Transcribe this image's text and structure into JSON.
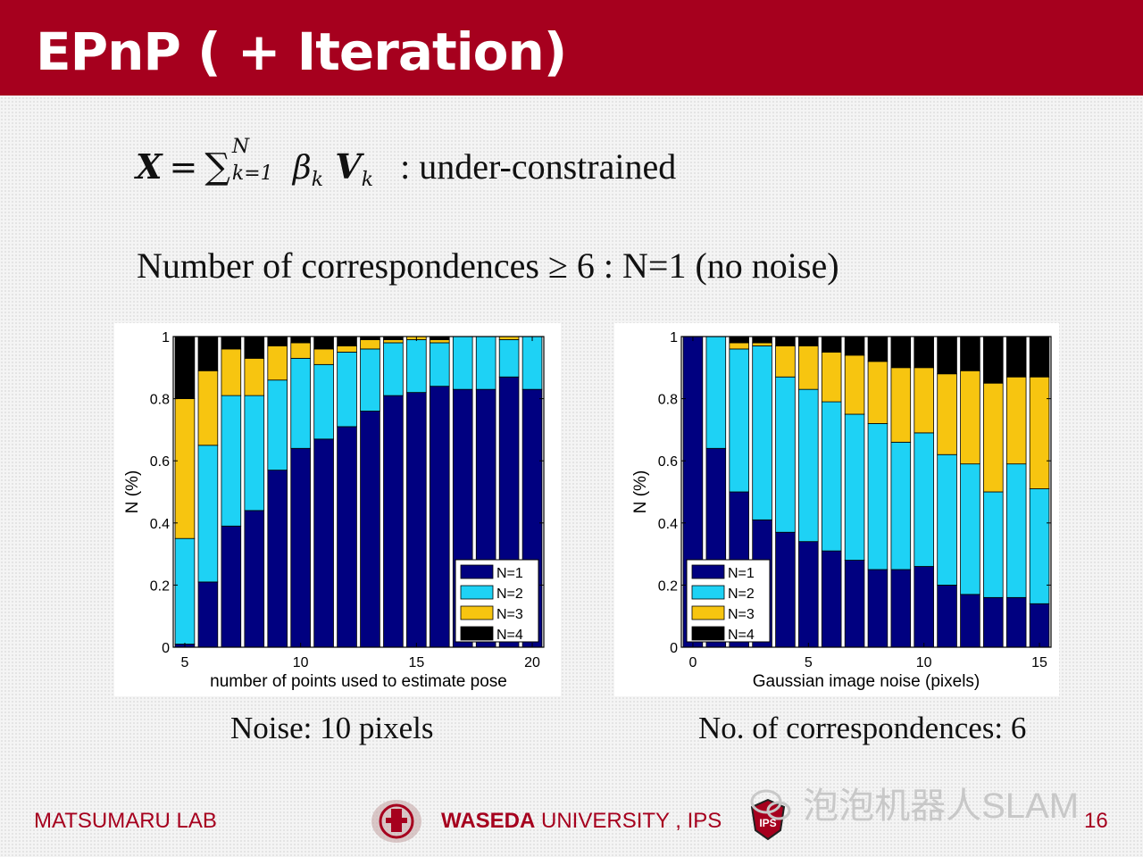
{
  "slide": {
    "title": "EPnP ( + Iteration)",
    "formula": {
      "lhs": "X",
      "equals": "=",
      "sum_symbol": "∑",
      "sum_upper": "N",
      "sum_lower": "k=1",
      "beta": "β",
      "sub_k": "k",
      "vec": "V",
      "note": ": under-constrained"
    },
    "line2": "Number of correspondences ≥ 6 : N=1 (no noise)",
    "caption_left": "Noise: 10 pixels",
    "caption_right": "No. of correspondences: 6",
    "footer_left": "MATSUMARU LAB",
    "footer_center_bold": "WASEDA",
    "footer_center_rest": " UNIVERSITY , IPS",
    "page_number": "16",
    "watermark": "泡泡机器人SLAM",
    "badge_text": "IPS"
  },
  "colors": {
    "header": "#a6001e",
    "N1": "#000080",
    "N2": "#1ed2f5",
    "N3": "#f7c510",
    "N4": "#000000"
  },
  "chart_data": [
    {
      "type": "bar",
      "stacked": true,
      "xlabel": "number of points used to estimate pose",
      "ylabel": "N (%)",
      "x": [
        5,
        6,
        7,
        8,
        9,
        10,
        11,
        12,
        13,
        14,
        15,
        16,
        17,
        18,
        19,
        20
      ],
      "xticks": [
        5,
        10,
        15,
        20
      ],
      "xticklabels": [
        "5",
        "10",
        "15",
        "20"
      ],
      "ylim": [
        0,
        1
      ],
      "yticks": [
        0,
        0.2,
        0.4,
        0.6,
        0.8,
        1
      ],
      "yticklabels": [
        "0",
        "0.2",
        "0.4",
        "0.6",
        "0.8",
        "1"
      ],
      "legend_position": "bottom-right",
      "series": [
        {
          "name": "N=1",
          "values": [
            0.01,
            0.21,
            0.39,
            0.44,
            0.57,
            0.64,
            0.67,
            0.71,
            0.76,
            0.81,
            0.82,
            0.84,
            0.83,
            0.83,
            0.87,
            0.83
          ]
        },
        {
          "name": "N=2",
          "values": [
            0.34,
            0.44,
            0.42,
            0.37,
            0.29,
            0.29,
            0.24,
            0.24,
            0.2,
            0.17,
            0.17,
            0.14,
            0.17,
            0.17,
            0.12,
            0.17
          ]
        },
        {
          "name": "N=3",
          "values": [
            0.45,
            0.24,
            0.15,
            0.12,
            0.11,
            0.05,
            0.05,
            0.02,
            0.03,
            0.01,
            0.01,
            0.01,
            0.0,
            0.0,
            0.01,
            0.0
          ]
        },
        {
          "name": "N=4",
          "values": [
            0.2,
            0.11,
            0.04,
            0.07,
            0.03,
            0.02,
            0.04,
            0.03,
            0.01,
            0.01,
            0.0,
            0.01,
            0.0,
            0.0,
            0.0,
            0.0
          ]
        }
      ]
    },
    {
      "type": "bar",
      "stacked": true,
      "xlabel": "Gaussian image noise (pixels)",
      "ylabel": "N (%)",
      "x": [
        0,
        1,
        2,
        3,
        4,
        5,
        6,
        7,
        8,
        9,
        10,
        11,
        12,
        13,
        14,
        15
      ],
      "xticks": [
        0,
        5,
        10,
        15
      ],
      "xticklabels": [
        "0",
        "5",
        "10",
        "15"
      ],
      "ylim": [
        0,
        1
      ],
      "yticks": [
        0,
        0.2,
        0.4,
        0.6,
        0.8,
        1
      ],
      "yticklabels": [
        "0",
        "0.2",
        "0.4",
        "0.6",
        "0.8",
        "1"
      ],
      "legend_position": "bottom-left",
      "series": [
        {
          "name": "N=1",
          "values": [
            1.0,
            0.64,
            0.5,
            0.41,
            0.37,
            0.34,
            0.31,
            0.28,
            0.25,
            0.25,
            0.26,
            0.2,
            0.17,
            0.16,
            0.16,
            0.14
          ]
        },
        {
          "name": "N=2",
          "values": [
            0.0,
            0.36,
            0.46,
            0.56,
            0.5,
            0.49,
            0.48,
            0.47,
            0.47,
            0.41,
            0.43,
            0.42,
            0.42,
            0.34,
            0.43,
            0.37
          ]
        },
        {
          "name": "N=3",
          "values": [
            0.0,
            0.0,
            0.02,
            0.01,
            0.1,
            0.14,
            0.16,
            0.19,
            0.2,
            0.24,
            0.21,
            0.26,
            0.3,
            0.35,
            0.28,
            0.36
          ]
        },
        {
          "name": "N=4",
          "values": [
            0.0,
            0.0,
            0.02,
            0.02,
            0.03,
            0.03,
            0.05,
            0.06,
            0.08,
            0.1,
            0.1,
            0.12,
            0.11,
            0.15,
            0.13,
            0.13
          ]
        }
      ]
    }
  ]
}
